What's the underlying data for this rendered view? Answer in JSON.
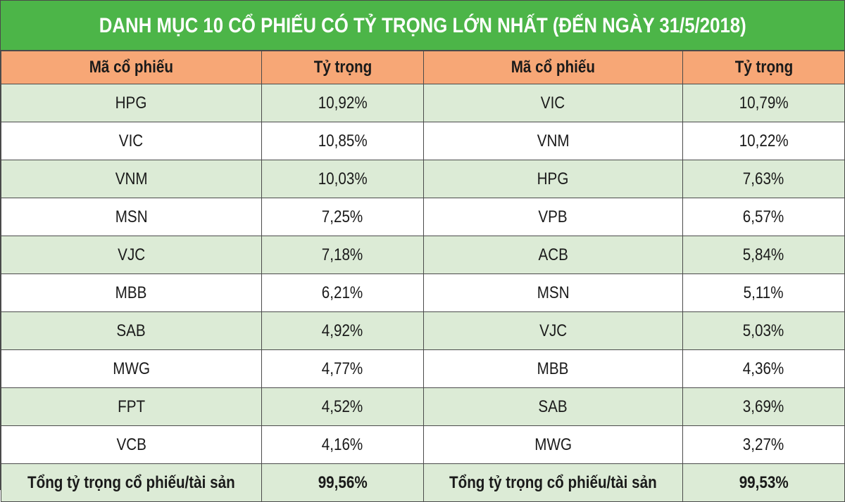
{
  "title": "DANH MỤC 10 CỔ PHIẾU CÓ TỶ TRỌNG LỚN NHẤT (ĐẾN NGÀY 31/5/2018)",
  "headers": [
    "Mã cổ phiếu",
    "Tỷ trọng",
    "Mã cổ phiếu",
    "Tỷ trọng"
  ],
  "rows": [
    {
      "left_code": "HPG",
      "left_weight": "10,92%",
      "right_code": "VIC",
      "right_weight": "10,79%"
    },
    {
      "left_code": "VIC",
      "left_weight": "10,85%",
      "right_code": "VNM",
      "right_weight": "10,22%"
    },
    {
      "left_code": "VNM",
      "left_weight": "10,03%",
      "right_code": "HPG",
      "right_weight": "7,63%"
    },
    {
      "left_code": "MSN",
      "left_weight": "7,25%",
      "right_code": "VPB",
      "right_weight": "6,57%"
    },
    {
      "left_code": "VJC",
      "left_weight": "7,18%",
      "right_code": "ACB",
      "right_weight": "5,84%"
    },
    {
      "left_code": "MBB",
      "left_weight": "6,21%",
      "right_code": "MSN",
      "right_weight": "5,11%"
    },
    {
      "left_code": "SAB",
      "left_weight": "4,92%",
      "right_code": "VJC",
      "right_weight": "5,03%"
    },
    {
      "left_code": "MWG",
      "left_weight": "4,77%",
      "right_code": "MBB",
      "right_weight": "4,36%"
    },
    {
      "left_code": "FPT",
      "left_weight": "4,52%",
      "right_code": "SAB",
      "right_weight": "3,69%"
    },
    {
      "left_code": "VCB",
      "left_weight": "4,16%",
      "right_code": "MWG",
      "right_weight": "3,27%"
    }
  ],
  "total": {
    "left_label": "Tổng tỷ trọng cổ phiếu/tài sản",
    "left_value": "99,56%",
    "right_label": "Tổng tỷ trọng cổ phiếu/tài sản",
    "right_value": "99,53%"
  },
  "colors": {
    "title_bg": "#4cb548",
    "header_bg": "#f7a776",
    "alt_row_bg": "#dcebd6",
    "border": "#4a4a4a"
  }
}
